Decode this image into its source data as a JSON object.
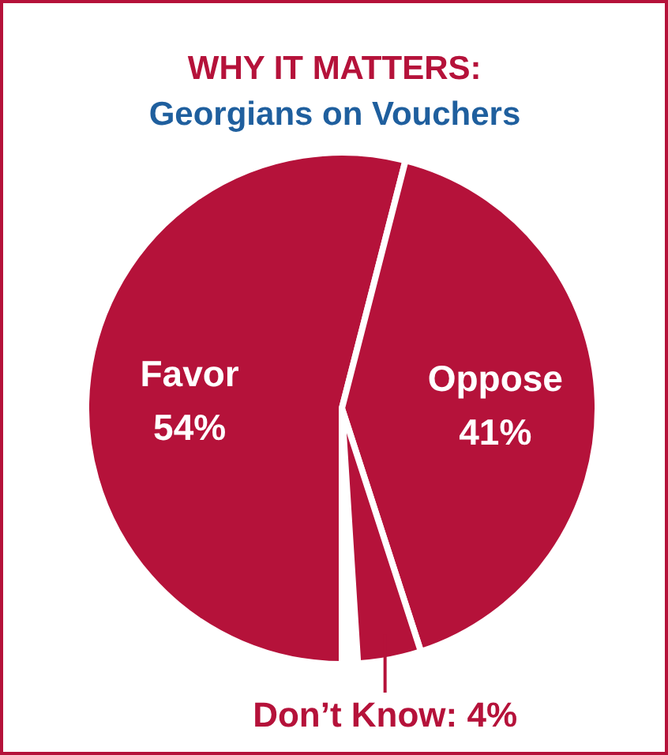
{
  "chart_data": {
    "type": "pie",
    "title": "WHY IT MATTERS:",
    "subtitle": "Georgians on Vouchers",
    "categories": [
      "Favor",
      "Oppose",
      "Don’t Know"
    ],
    "values": [
      54,
      41,
      4
    ],
    "colors": [
      "#b5123a",
      "#b5123a",
      "#b5123a"
    ],
    "value_labels": [
      "54%",
      "41%",
      "4%"
    ]
  }
}
